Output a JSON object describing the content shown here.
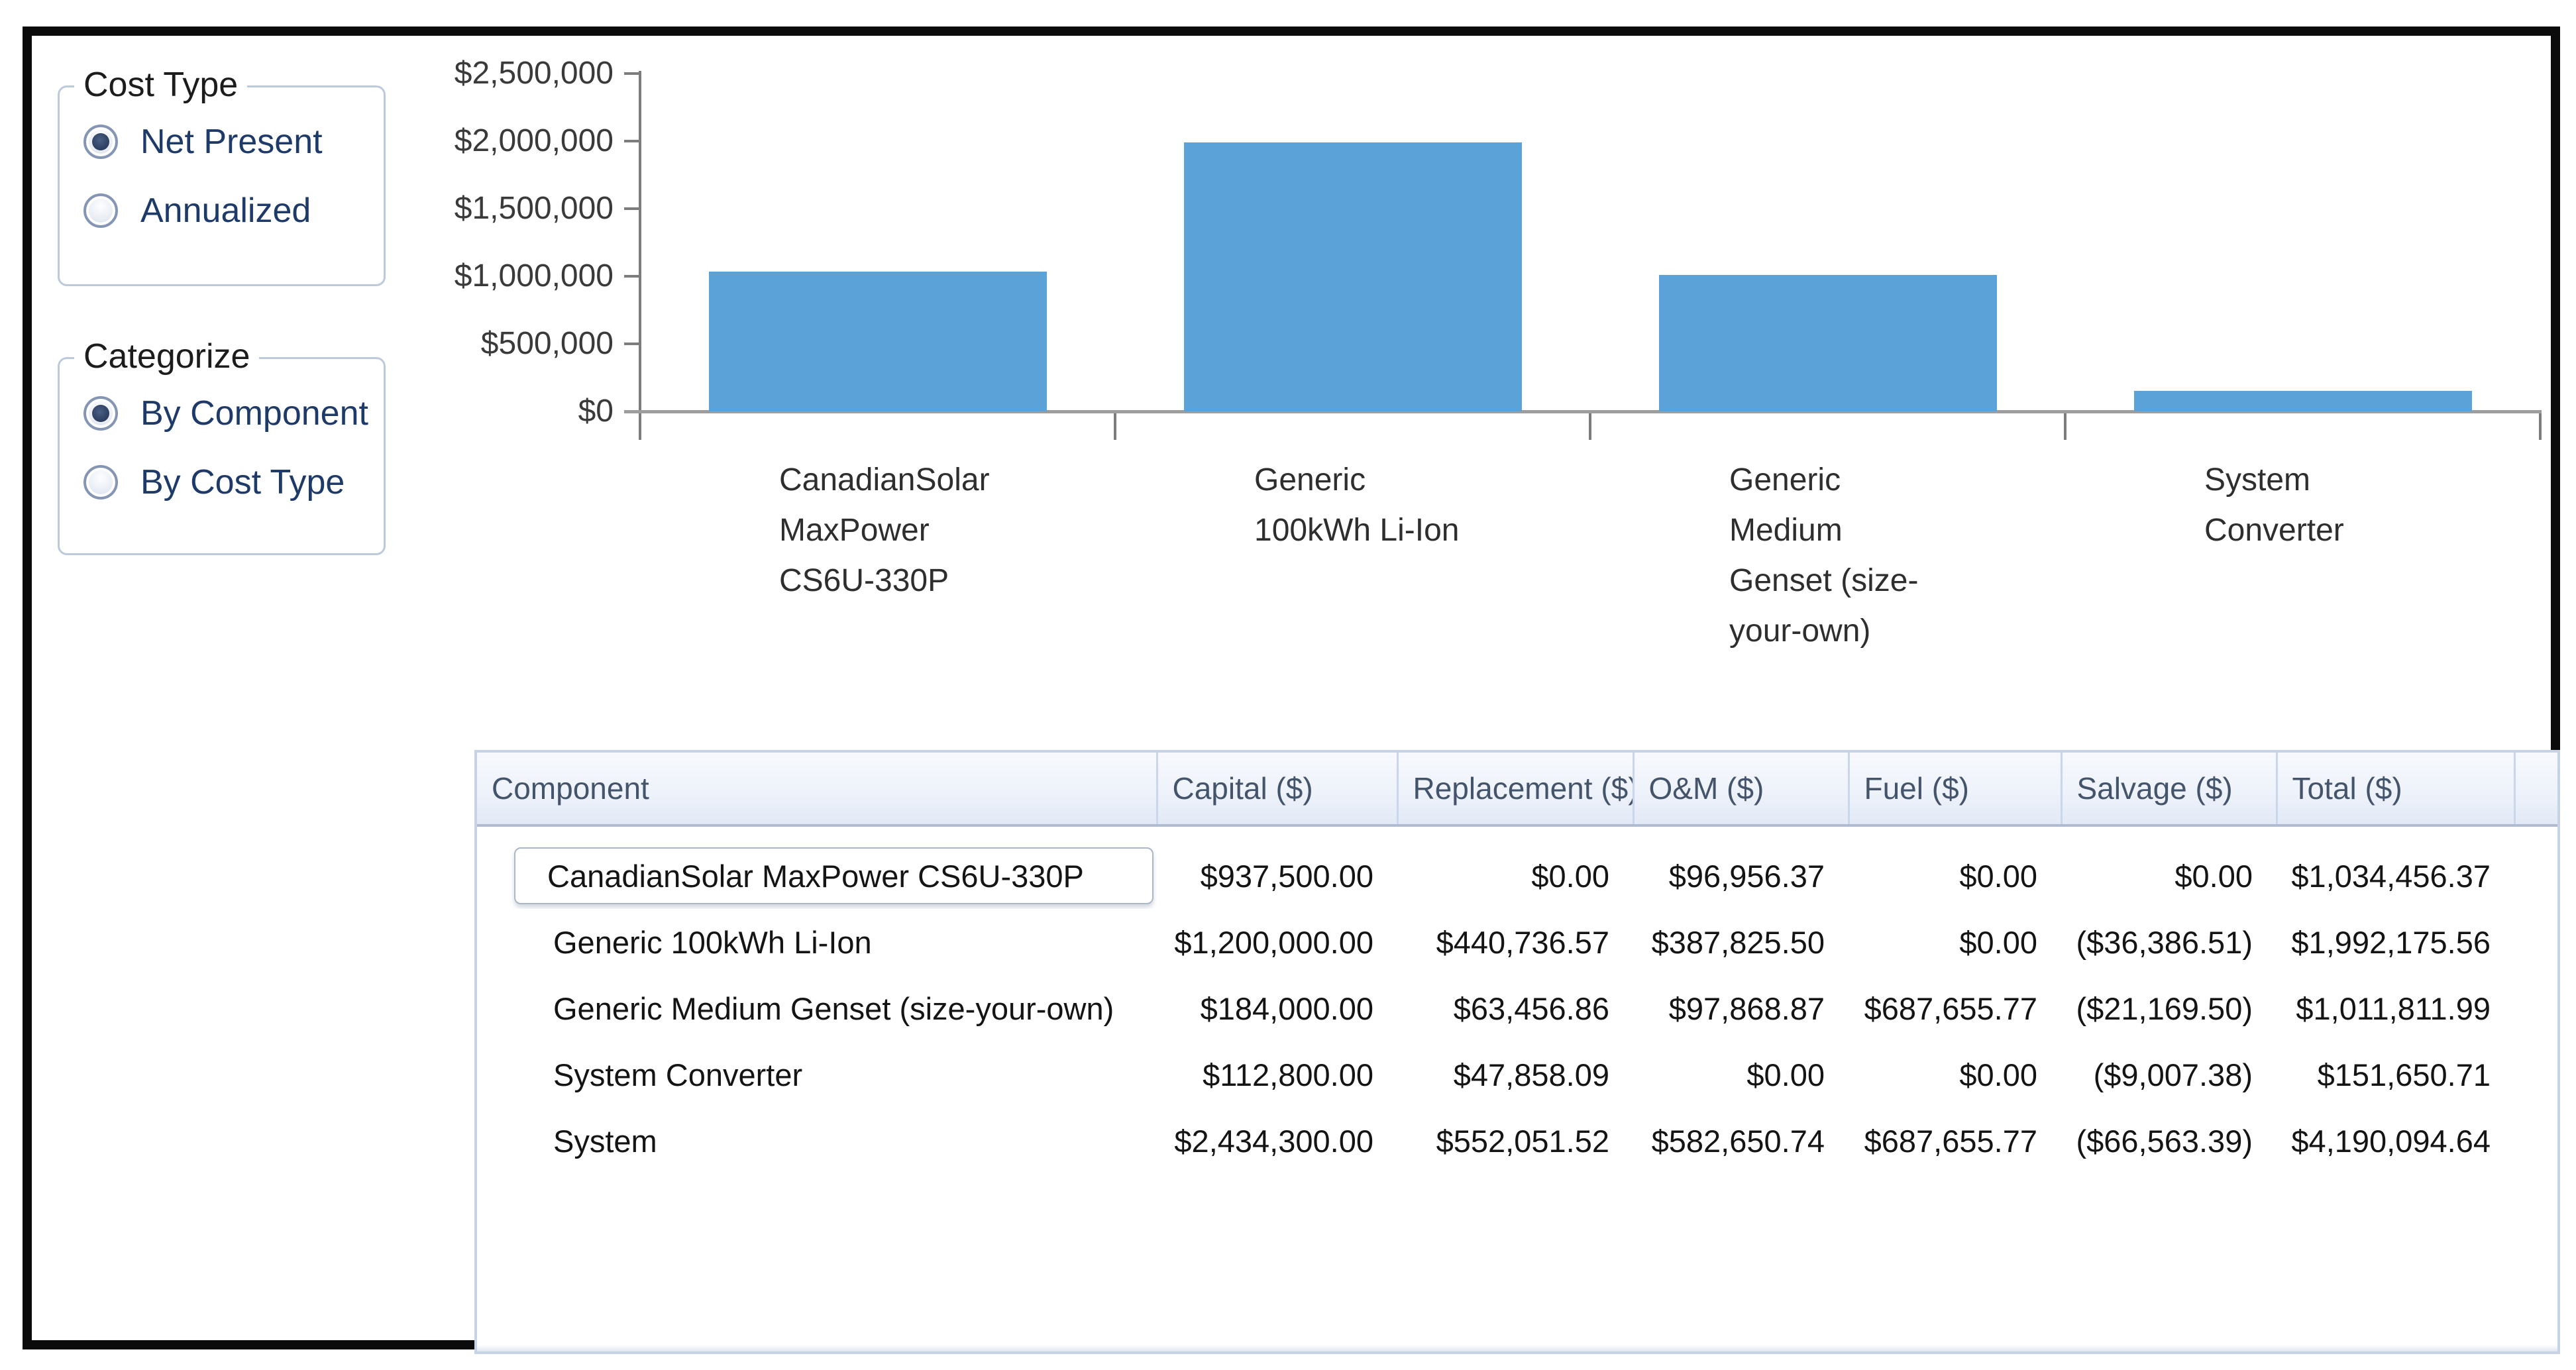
{
  "panels": {
    "cost_type": {
      "title": "Cost Type",
      "options": [
        {
          "label": "Net Present",
          "selected": true
        },
        {
          "label": "Annualized",
          "selected": false
        }
      ]
    },
    "categorize": {
      "title": "Categorize",
      "options": [
        {
          "label": "By Component",
          "selected": true
        },
        {
          "label": "By Cost Type",
          "selected": false
        }
      ]
    }
  },
  "chart_data": {
    "type": "bar",
    "title": "",
    "xlabel": "",
    "ylabel": "",
    "categories": [
      "CanadianSolar MaxPower CS6U-330P",
      "Generic 100kWh Li-Ion",
      "Generic Medium Genset (size-your-own)",
      "System Converter"
    ],
    "category_label_lines": [
      [
        "CanadianSolar",
        "MaxPower",
        "CS6U-330P"
      ],
      [
        "Generic",
        "100kWh Li-Ion"
      ],
      [
        "Generic",
        "Medium",
        "Genset (size-",
        "your-own)"
      ],
      [
        "System",
        "Converter"
      ]
    ],
    "values": [
      1034456.37,
      1992175.56,
      1011811.99,
      151650.71
    ],
    "ylim": [
      0,
      2500000
    ],
    "ytick_values": [
      0,
      500000,
      1000000,
      1500000,
      2000000,
      2500000
    ],
    "ytick_labels": [
      "$0",
      "$500,000",
      "$1,000,000",
      "$1,500,000",
      "$2,000,000",
      "$2,500,000"
    ],
    "grid": false,
    "legend": false,
    "bar_color": "#5aa2d8"
  },
  "table": {
    "columns": [
      "Component",
      "Capital ($)",
      "Replacement ($)",
      "O&M ($)",
      "Fuel ($)",
      "Salvage ($)",
      "Total ($)"
    ],
    "rows": [
      {
        "component": "CanadianSolar MaxPower CS6U-330P",
        "capital": "$937,500.00",
        "replacement": "$0.00",
        "om": "$96,956.37",
        "fuel": "$0.00",
        "salvage": "$0.00",
        "total": "$1,034,456.37",
        "editing": true
      },
      {
        "component": "Generic 100kWh Li-Ion",
        "capital": "$1,200,000.00",
        "replacement": "$440,736.57",
        "om": "$387,825.50",
        "fuel": "$0.00",
        "salvage": "($36,386.51)",
        "total": "$1,992,175.56",
        "editing": false
      },
      {
        "component": "Generic Medium Genset (size-your-own)",
        "capital": "$184,000.00",
        "replacement": "$63,456.86",
        "om": "$97,868.87",
        "fuel": "$687,655.77",
        "salvage": "($21,169.50)",
        "total": "$1,011,811.99",
        "editing": false
      },
      {
        "component": "System Converter",
        "capital": "$112,800.00",
        "replacement": "$47,858.09",
        "om": "$0.00",
        "fuel": "$0.00",
        "salvage": "($9,007.38)",
        "total": "$151,650.71",
        "editing": false
      },
      {
        "component": "System",
        "capital": "$2,434,300.00",
        "replacement": "$552,051.52",
        "om": "$582,650.74",
        "fuel": "$687,655.77",
        "salvage": "($66,563.39)",
        "total": "$4,190,094.64",
        "editing": false
      }
    ]
  }
}
